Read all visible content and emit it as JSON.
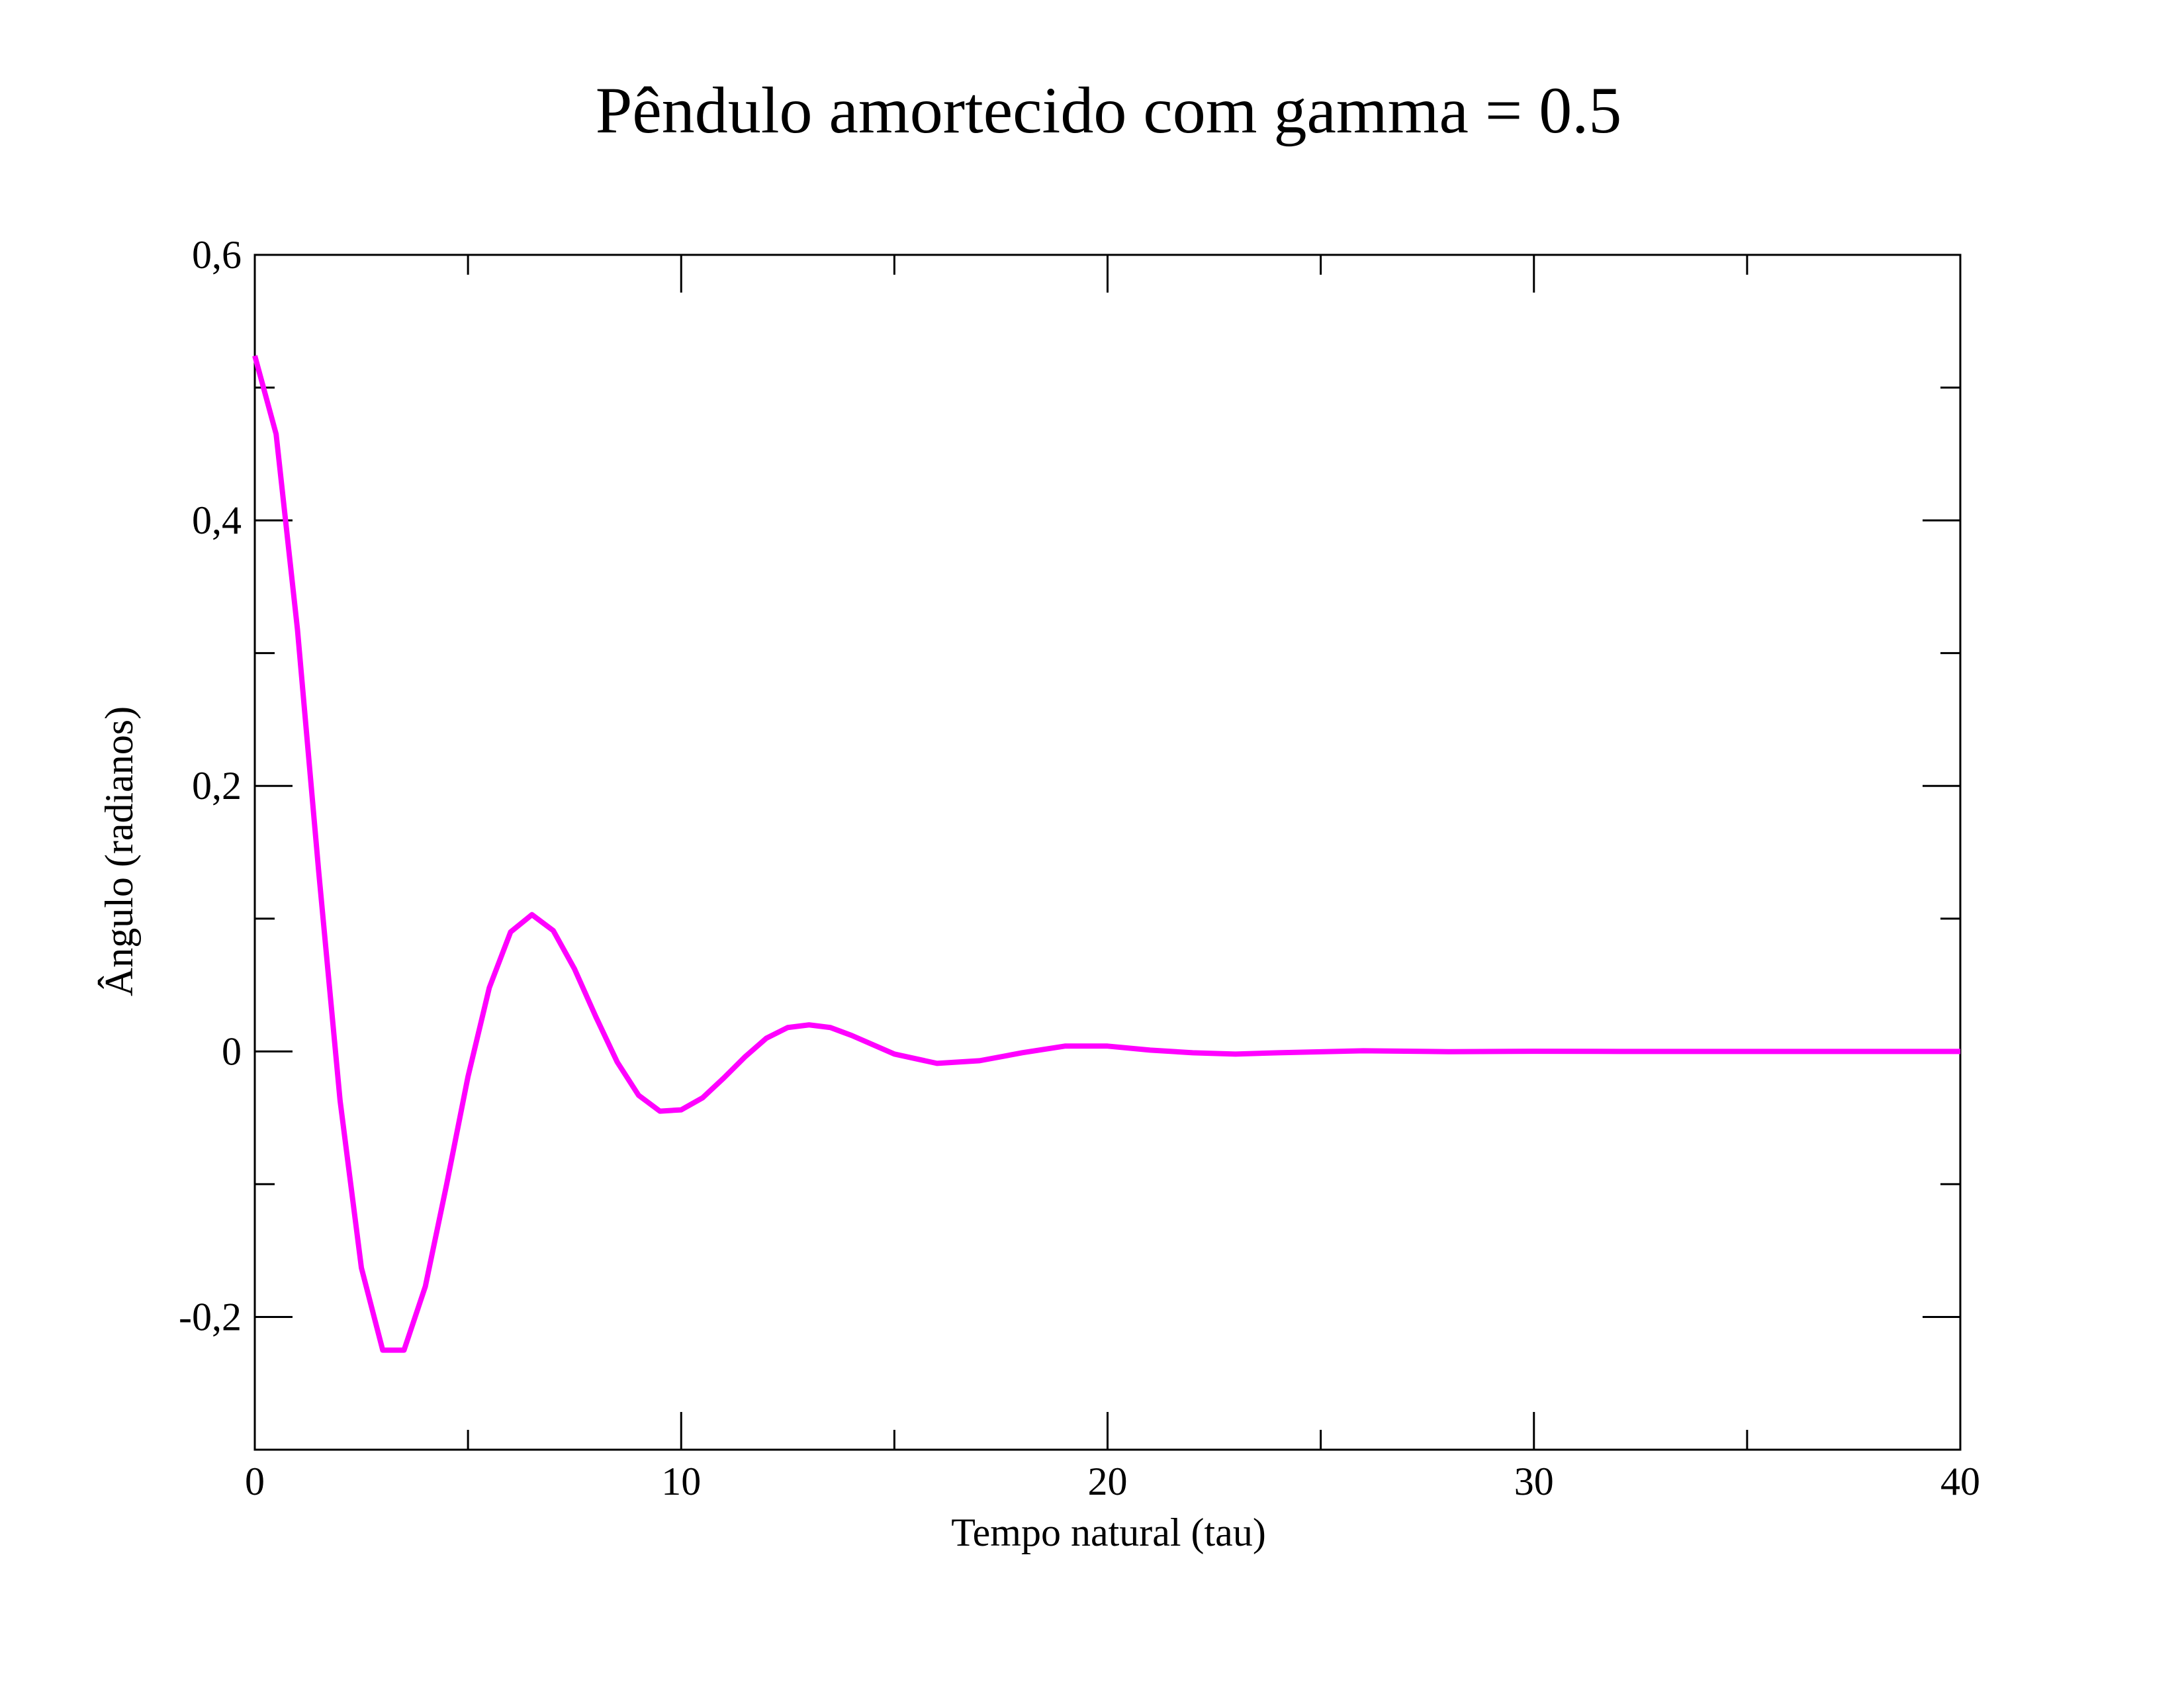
{
  "chart_data": {
    "type": "line",
    "title": "Pêndulo amortecido com gamma = 0.5",
    "xlabel": "Tempo natural (tau)",
    "ylabel": "Ângulo (radianos)",
    "x": [
      0,
      0.5,
      1,
      1.5,
      2,
      2.5,
      3,
      3.5,
      4,
      4.5,
      5,
      5.5,
      6,
      6.5,
      7,
      7.5,
      8,
      8.5,
      9,
      9.5,
      10,
      10.5,
      11,
      11.5,
      12,
      12.5,
      13,
      13.5,
      14,
      15,
      16,
      17,
      18,
      19,
      20,
      21,
      22,
      23,
      24,
      26,
      28,
      30,
      32,
      34,
      36,
      38,
      40
    ],
    "values": [
      0.524,
      0.465,
      0.318,
      0.135,
      -0.037,
      -0.163,
      -0.225,
      -0.225,
      -0.177,
      -0.1,
      -0.019,
      0.048,
      0.09,
      0.103,
      0.091,
      0.062,
      0.026,
      -0.008,
      -0.033,
      -0.045,
      -0.044,
      -0.035,
      -0.02,
      -0.004,
      0.01,
      0.018,
      0.02,
      0.018,
      0.012,
      -0.002,
      -0.009,
      -0.007,
      -0.001,
      0.004,
      0.004,
      0.001,
      -0.001,
      -0.002,
      -0.001,
      0.0005,
      -0.0002,
      0.0001,
      0,
      0,
      0,
      0,
      0
    ],
    "color": "#ff00ff",
    "xlim": [
      0,
      40
    ],
    "xticks": [
      0,
      10,
      20,
      30,
      40
    ],
    "xminor_ticks": [
      5,
      15,
      25,
      35
    ],
    "ylim": [
      -0.3,
      0.6
    ],
    "yticks": [
      {
        "value": -0.2,
        "label": "-0,2"
      },
      0,
      {
        "value": 0.2,
        "label": "0,2"
      },
      {
        "value": 0.4,
        "label": "0,4"
      },
      {
        "value": 0.6,
        "label": "0,6"
      }
    ],
    "yminor_ticks": [
      -0.1,
      0.1,
      0.3,
      0.5
    ],
    "mirror_ticks": true,
    "grid": false
  }
}
